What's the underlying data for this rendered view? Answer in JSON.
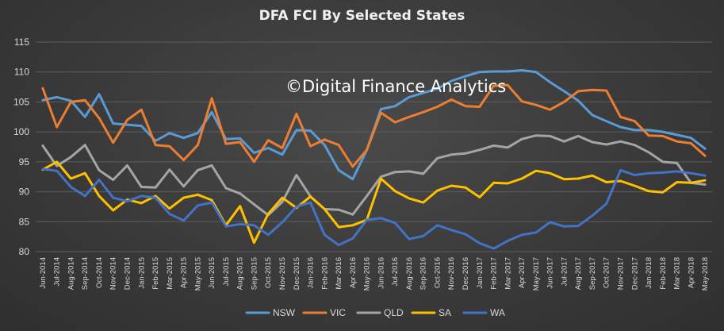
{
  "chart_data": {
    "type": "line",
    "title": "DFA FCI By Selected States",
    "watermark": "©Digital Finance Analytics",
    "xlabel": "",
    "ylabel": "",
    "ylim": [
      80,
      115
    ],
    "yticks": [
      80,
      85,
      90,
      95,
      100,
      105,
      110,
      115
    ],
    "grid": true,
    "legend_position": "bottom",
    "x": [
      "Jun-2014",
      "Jul-2014",
      "Aug-2014",
      "Sep-2014",
      "Oct-2014",
      "Nov-2014",
      "Dec-2014",
      "Jan-2015",
      "Feb-2015",
      "Mar-2015",
      "Apr-2015",
      "May-2015",
      "Jun-2015",
      "Jul-2015",
      "Aug-2015",
      "Sep-2015",
      "Oct-2015",
      "Nov-2015",
      "Dec-2015",
      "Jan-2016",
      "Feb-2016",
      "Mar-2016",
      "Apr-2016",
      "May-2016",
      "Jun-2016",
      "Jul-2016",
      "Aug-2016",
      "Sep-2016",
      "Oct-2016",
      "Nov-2016",
      "Dec-2016",
      "Jan-2017",
      "Feb-2017",
      "Mar-2017",
      "Apr-2017",
      "May-2017",
      "Jun-2017",
      "Jul-2017",
      "Aug-2017",
      "Sep-2017",
      "Oct-2017",
      "Nov-2017",
      "Dec-2017",
      "Jan-2018",
      "Feb-2018",
      "Mar-2018",
      "Apr-2018",
      "May-2018"
    ],
    "series": [
      {
        "name": "NSW",
        "color": "#5b9bd5",
        "values": [
          105.3,
          105.8,
          105.2,
          102.5,
          106.3,
          101.4,
          101.2,
          101.0,
          98.5,
          99.8,
          99.0,
          99.8,
          103.3,
          98.8,
          98.9,
          96.5,
          97.3,
          96.2,
          100.3,
          100.2,
          97.8,
          93.6,
          92.1,
          97.0,
          103.8,
          104.3,
          105.8,
          106.5,
          107.2,
          108.5,
          109.3,
          110.0,
          110.1,
          110.1,
          110.3,
          110.0,
          108.3,
          106.8,
          105.2,
          102.8,
          101.8,
          100.8,
          100.3,
          100.3,
          100.0,
          99.5,
          99.0,
          97.2
        ]
      },
      {
        "name": "VIC",
        "color": "#ed7d31",
        "values": [
          107.3,
          100.8,
          105.0,
          105.3,
          102.3,
          98.2,
          102.0,
          103.7,
          97.8,
          97.6,
          95.3,
          97.8,
          105.6,
          98.0,
          98.3,
          95.0,
          98.6,
          97.3,
          103.0,
          97.6,
          98.7,
          97.8,
          94.2,
          97.0,
          103.2,
          101.6,
          102.5,
          103.3,
          104.2,
          105.4,
          104.3,
          104.2,
          107.7,
          107.8,
          105.1,
          104.5,
          103.7,
          105.0,
          106.8,
          107.0,
          106.9,
          102.5,
          101.8,
          99.4,
          99.3,
          98.4,
          98.1,
          96.0
        ]
      },
      {
        "name": "QLD",
        "color": "#a5a5a5",
        "values": [
          97.7,
          94.3,
          95.8,
          97.8,
          93.6,
          92.0,
          94.4,
          90.8,
          90.7,
          93.7,
          90.9,
          93.6,
          94.4,
          90.6,
          89.7,
          87.9,
          86.1,
          88.3,
          92.8,
          89.2,
          87.1,
          87.0,
          86.2,
          89.3,
          92.5,
          93.3,
          93.4,
          93.0,
          95.6,
          96.2,
          96.4,
          97.0,
          97.7,
          97.4,
          98.8,
          99.4,
          99.3,
          98.4,
          99.3,
          98.3,
          97.9,
          98.4,
          97.8,
          96.6,
          95.0,
          94.8,
          91.5,
          91.2
        ]
      },
      {
        "name": "SA",
        "color": "#ffc000",
        "values": [
          93.7,
          95.0,
          92.2,
          93.1,
          89.3,
          86.9,
          88.7,
          88.1,
          89.3,
          87.2,
          89.0,
          89.5,
          88.6,
          84.4,
          87.6,
          81.5,
          86.3,
          89.0,
          87.3,
          89.2,
          87.1,
          84.1,
          84.4,
          85.3,
          92.2,
          90.1,
          88.9,
          88.2,
          90.2,
          91.0,
          90.7,
          89.1,
          91.5,
          91.4,
          92.2,
          93.5,
          93.1,
          92.1,
          92.2,
          92.7,
          91.6,
          91.8,
          91.0,
          90.1,
          89.9,
          91.6,
          91.5,
          91.9
        ]
      },
      {
        "name": "WA",
        "color": "#4472c4",
        "values": [
          93.8,
          93.5,
          90.8,
          89.3,
          92.0,
          89.0,
          88.4,
          89.3,
          89.0,
          86.3,
          85.2,
          87.7,
          88.2,
          84.2,
          84.6,
          84.4,
          82.8,
          84.9,
          87.5,
          88.2,
          82.8,
          81.1,
          82.2,
          85.3,
          85.6,
          84.8,
          82.1,
          82.6,
          84.4,
          83.6,
          82.9,
          81.4,
          80.5,
          81.8,
          82.8,
          83.2,
          84.9,
          84.2,
          84.3,
          86.0,
          88.0,
          93.6,
          92.8,
          93.1,
          93.2,
          93.4,
          93.1,
          92.7
        ]
      }
    ]
  }
}
